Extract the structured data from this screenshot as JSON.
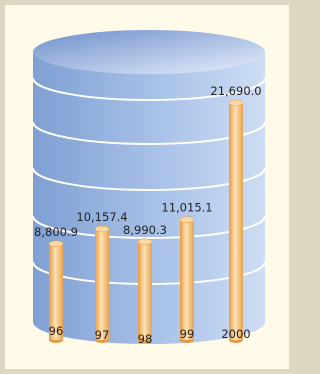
{
  "chart_data": {
    "type": "bar",
    "categories": [
      "96",
      "97",
      "98",
      "99",
      "2000"
    ],
    "values": [
      8800.9,
      10157.4,
      8990.3,
      11015.1,
      21690.0
    ],
    "value_labels": [
      "8,800.9",
      "10,157.4",
      "8,990.3",
      "11,015.1",
      "21,690.0"
    ],
    "color": "#f5b866"
  }
}
